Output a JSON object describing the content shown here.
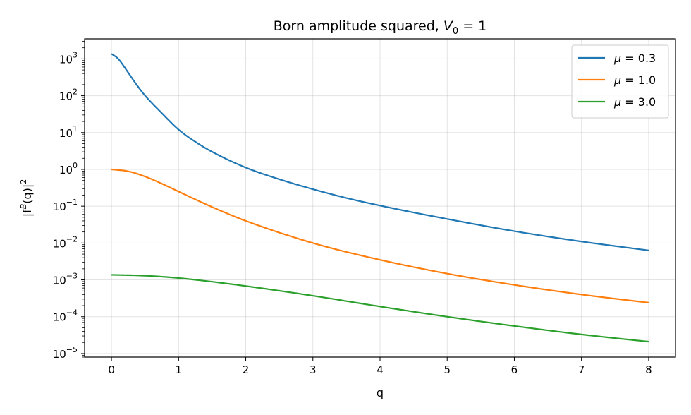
{
  "chart_data": {
    "type": "line",
    "title": "Born amplitude squared, V₀ = 1",
    "title_parts": {
      "prefix": "Born amplitude squared, ",
      "var": "V",
      "sub": "0",
      "suffix": " = 1"
    },
    "xlabel": "q",
    "ylabel": "|fᴮ(q)|²",
    "ylabel_parts": {
      "pre": "|f",
      "sup": "B",
      "mid": "(q)|",
      "sup2": "2"
    },
    "xlim": [
      -0.4,
      8.4
    ],
    "ylim": [
      8e-06,
      3500
    ],
    "yscale": "log",
    "grid": true,
    "legend_position": "top-right",
    "x_ticks": [
      "0",
      "1",
      "2",
      "3",
      "4",
      "5",
      "6",
      "7",
      "8"
    ],
    "y_ticks": [
      {
        "base": "10",
        "exp": "3"
      },
      {
        "base": "10",
        "exp": "2"
      },
      {
        "base": "10",
        "exp": "1"
      },
      {
        "base": "10",
        "exp": "0"
      },
      {
        "base": "10",
        "exp": "−1"
      },
      {
        "base": "10",
        "exp": "−2"
      },
      {
        "base": "10",
        "exp": "−3"
      },
      {
        "base": "10",
        "exp": "−4"
      },
      {
        "base": "10",
        "exp": "−5"
      }
    ],
    "series": [
      {
        "name": "μ = 0.3",
        "name_parts": {
          "var": "μ",
          "val": " = 0.3"
        },
        "color": "#1f77b4",
        "x": [
          0,
          0.1,
          0.2,
          0.3,
          0.4,
          0.5,
          0.75,
          1,
          1.25,
          1.5,
          2,
          2.5,
          3,
          3.5,
          4,
          5,
          6,
          7,
          8
        ],
        "y": [
          1372,
          1008,
          574,
          310,
          172,
          101,
          33.6,
          12.0,
          5.6,
          3.0,
          1.12,
          0.54,
          0.29,
          0.167,
          0.104,
          0.045,
          0.021,
          0.011,
          0.0063
        ]
      },
      {
        "name": "μ = 1.0",
        "name_parts": {
          "var": "μ",
          "val": " = 1.0"
        },
        "color": "#ff7f0e",
        "x": [
          0,
          0.25,
          0.5,
          0.75,
          1,
          1.5,
          2,
          3,
          4,
          5,
          6,
          7,
          8
        ],
        "y": [
          1.0,
          0.886,
          0.64,
          0.41,
          0.25,
          0.095,
          0.04,
          0.01,
          0.0035,
          0.00148,
          0.00073,
          0.0004,
          0.00024
        ]
      },
      {
        "name": "μ = 3.0",
        "name_parts": {
          "var": "μ",
          "val": " = 3.0"
        },
        "color": "#2ca02c",
        "x": [
          0,
          0.5,
          1,
          1.5,
          2,
          3,
          4,
          5,
          6,
          7,
          8
        ],
        "y": [
          0.00137,
          0.0013,
          0.00112,
          0.00089,
          0.00068,
          0.00037,
          0.000189,
          0.0001,
          5.6e-05,
          3.3e-05,
          2.1e-05
        ]
      }
    ]
  }
}
